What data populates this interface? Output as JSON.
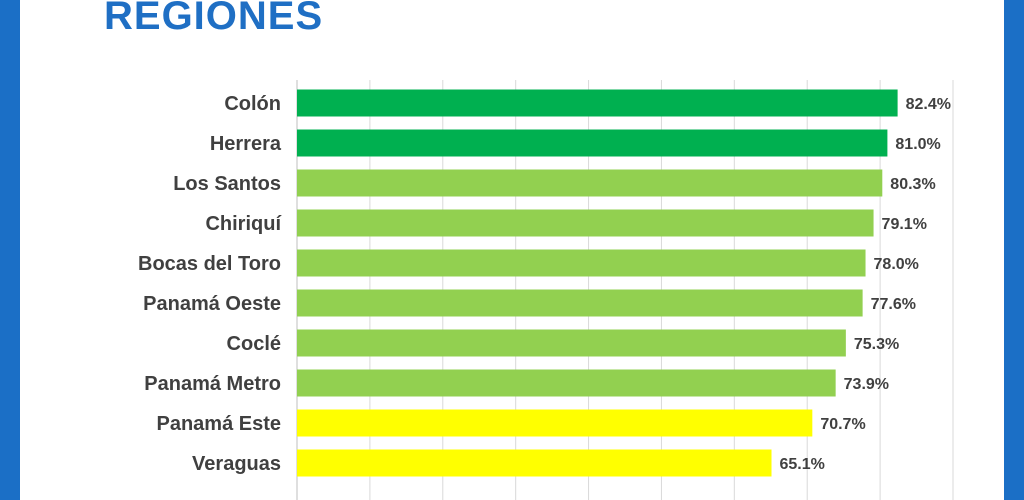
{
  "title": "REGIONES",
  "colors": {
    "frame": "#1b6fc6",
    "title": "#1f6fc4",
    "dark_green": "#00b050",
    "light_green": "#92d050",
    "yellow": "#ffff00",
    "grid": "#d9d9d9",
    "label": "#404040"
  },
  "chart_data": {
    "type": "bar",
    "orientation": "horizontal",
    "title": "REGIONES",
    "categories": [
      "Colón",
      "Herrera",
      "Los Santos",
      "Chiriquí",
      "Bocas del Toro",
      "Panamá Oeste",
      "Coclé",
      "Panamá Metro",
      "Panamá Este",
      "Veraguas"
    ],
    "values": [
      82.4,
      81.0,
      80.3,
      79.1,
      78.0,
      77.6,
      75.3,
      73.9,
      70.7,
      65.1
    ],
    "value_labels": [
      "82.4%",
      "81.0%",
      "80.3%",
      "79.1%",
      "78.0%",
      "77.6%",
      "75.3%",
      "73.9%",
      "70.7%",
      "65.1%"
    ],
    "bar_colors": [
      "#00b050",
      "#00b050",
      "#92d050",
      "#92d050",
      "#92d050",
      "#92d050",
      "#92d050",
      "#92d050",
      "#ffff00",
      "#ffff00"
    ],
    "xlim": [
      0,
      90
    ],
    "grid": true,
    "legend": "none"
  }
}
